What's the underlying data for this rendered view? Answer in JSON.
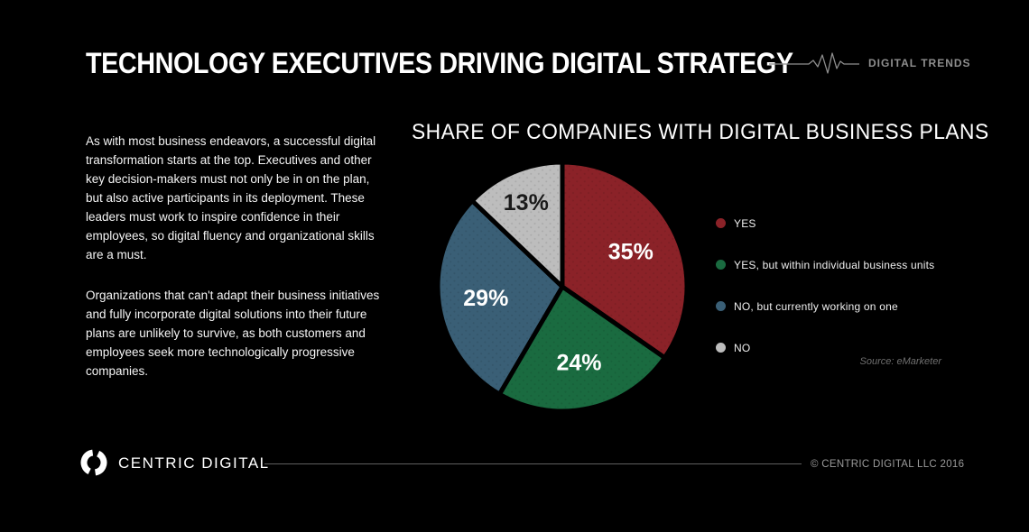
{
  "colors": {
    "background": "#000000",
    "title_text": "#FFFFFF",
    "body_text": "#F5F5F5",
    "muted_text": "#8F8F8F",
    "divider": "#5F5F5F"
  },
  "header": {
    "title": "TECHNOLOGY EXECUTIVES DRIVING DIGITAL STRATEGY",
    "brand_tag": "DIGITAL TRENDS"
  },
  "intro": {
    "paragraph1": "As with most business endeavors, a successful digital transformation starts at the top. Executives and other key decision-makers must not only be in on the plan, but also active participants in its deployment. These leaders must work to inspire confidence in their employees, so digital fluency and organizational skills are a must.",
    "paragraph2": "Organizations that can't adapt their business initiatives and fully incorporate digital solutions into their future plans are unlikely to survive, as both customers and employees seek more technologically progressive companies."
  },
  "chart_data": {
    "type": "pie",
    "title": "SHARE OF COMPANIES WITH DIGITAL BUSINESS PLANS",
    "start_angle_deg": 0,
    "direction": "clockwise",
    "legend_position": "right",
    "source": "Source: eMarketer",
    "slices": [
      {
        "label": "YES",
        "value": 35,
        "display": "35%",
        "color": "#8B2228",
        "label_color": "#FFFFFF"
      },
      {
        "label": "YES, but within individual business units",
        "value": 24,
        "display": "24%",
        "color": "#1A6B40",
        "label_color": "#FFFFFF"
      },
      {
        "label": "NO, but currently working on one",
        "value": 29,
        "display": "29%",
        "color": "#3A5F76",
        "label_color": "#FFFFFF"
      },
      {
        "label": "NO",
        "value": 13,
        "display": "13%",
        "color": "#BDBDBD",
        "label_color": "#1A1A1A"
      }
    ]
  },
  "footer": {
    "brand": "CENTRIC DIGITAL",
    "copyright": "© CENTRIC DIGITAL LLC 2016"
  }
}
